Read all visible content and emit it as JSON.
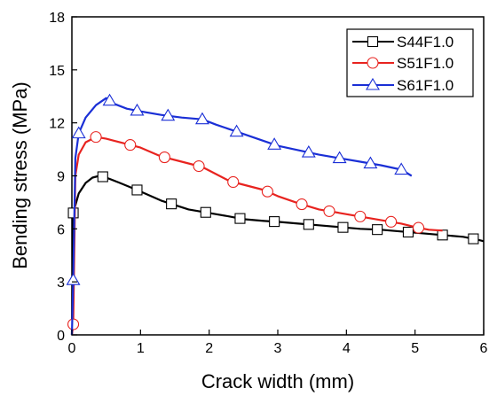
{
  "chart_data": {
    "type": "line",
    "title": "",
    "xlabel": "Crack width (mm)",
    "ylabel": "Bending stress (MPa)",
    "xlim": [
      0,
      6
    ],
    "ylim": [
      0,
      18
    ],
    "xticks": [
      0,
      1,
      2,
      3,
      4,
      5,
      6
    ],
    "yticks": [
      0,
      3,
      6,
      9,
      12,
      15,
      18
    ],
    "grid": false,
    "legend_position": "top-right",
    "series": [
      {
        "name": "S44F1.0",
        "color": "#000000",
        "marker": "square",
        "points": [
          [
            0,
            0
          ],
          [
            0.02,
            6.9
          ],
          [
            0.1,
            8.0
          ],
          [
            0.2,
            8.6
          ],
          [
            0.3,
            8.9
          ],
          [
            0.4,
            9.0
          ],
          [
            0.5,
            8.9
          ],
          [
            0.7,
            8.6
          ],
          [
            0.95,
            8.2
          ],
          [
            1.3,
            7.6
          ],
          [
            1.5,
            7.35
          ],
          [
            1.7,
            7.1
          ],
          [
            2.0,
            6.9
          ],
          [
            2.3,
            6.7
          ],
          [
            2.5,
            6.55
          ],
          [
            2.8,
            6.45
          ],
          [
            3.0,
            6.4
          ],
          [
            3.3,
            6.3
          ],
          [
            3.6,
            6.2
          ],
          [
            3.9,
            6.1
          ],
          [
            4.2,
            6.0
          ],
          [
            4.5,
            5.95
          ],
          [
            4.8,
            5.85
          ],
          [
            5.1,
            5.75
          ],
          [
            5.4,
            5.65
          ],
          [
            5.7,
            5.55
          ],
          [
            5.9,
            5.4
          ],
          [
            6.0,
            5.3
          ]
        ],
        "markers_x": [
          0.02,
          0.45,
          0.95,
          1.45,
          1.95,
          2.45,
          2.95,
          3.45,
          3.95,
          4.45,
          4.9,
          5.4,
          5.85
        ]
      },
      {
        "name": "S51F1.0",
        "color": "#e8231f",
        "marker": "circle",
        "points": [
          [
            0,
            0
          ],
          [
            0.02,
            0.6
          ],
          [
            0.05,
            9.0
          ],
          [
            0.1,
            10.2
          ],
          [
            0.2,
            10.9
          ],
          [
            0.35,
            11.2
          ],
          [
            0.5,
            11.1
          ],
          [
            0.8,
            10.8
          ],
          [
            1.0,
            10.6
          ],
          [
            1.3,
            10.1
          ],
          [
            1.6,
            9.8
          ],
          [
            1.9,
            9.5
          ],
          [
            2.1,
            9.1
          ],
          [
            2.3,
            8.7
          ],
          [
            2.5,
            8.5
          ],
          [
            2.8,
            8.2
          ],
          [
            3.0,
            7.85
          ],
          [
            3.3,
            7.45
          ],
          [
            3.6,
            7.1
          ],
          [
            3.9,
            6.9
          ],
          [
            4.2,
            6.7
          ],
          [
            4.5,
            6.5
          ],
          [
            4.8,
            6.3
          ],
          [
            5.0,
            6.1
          ],
          [
            5.2,
            5.95
          ],
          [
            5.4,
            5.9
          ]
        ],
        "markers_x": [
          0.02,
          0.35,
          0.85,
          1.35,
          1.85,
          2.35,
          2.85,
          3.35,
          3.75,
          4.2,
          4.65,
          5.05
        ]
      },
      {
        "name": "S61F1.0",
        "color": "#1a2fd6",
        "marker": "triangle",
        "points": [
          [
            0,
            0
          ],
          [
            0.02,
            3.1
          ],
          [
            0.05,
            10.0
          ],
          [
            0.1,
            11.4
          ],
          [
            0.2,
            12.3
          ],
          [
            0.35,
            13.0
          ],
          [
            0.5,
            13.4
          ],
          [
            0.6,
            13.1
          ],
          [
            0.8,
            12.8
          ],
          [
            1.0,
            12.65
          ],
          [
            1.3,
            12.45
          ],
          [
            1.6,
            12.3
          ],
          [
            1.9,
            12.2
          ],
          [
            2.1,
            11.9
          ],
          [
            2.4,
            11.5
          ],
          [
            2.7,
            11.1
          ],
          [
            3.0,
            10.7
          ],
          [
            3.3,
            10.45
          ],
          [
            3.6,
            10.2
          ],
          [
            3.9,
            10.0
          ],
          [
            4.2,
            9.8
          ],
          [
            4.5,
            9.6
          ],
          [
            4.8,
            9.35
          ],
          [
            4.95,
            9.0
          ]
        ],
        "markers_x": [
          0.02,
          0.1,
          0.55,
          0.95,
          1.4,
          1.9,
          2.4,
          2.95,
          3.45,
          3.9,
          4.35,
          4.8
        ]
      }
    ]
  }
}
